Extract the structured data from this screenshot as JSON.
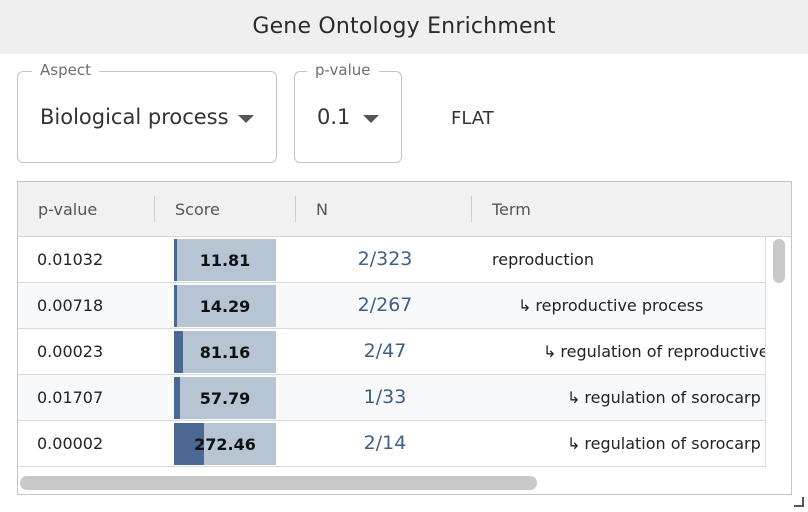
{
  "title": "Gene Ontology Enrichment",
  "controls": {
    "aspect": {
      "label": "Aspect",
      "value": "Biological process"
    },
    "pvalue": {
      "label": "p-value",
      "value": "0.1"
    },
    "flat_label": "FLAT"
  },
  "table": {
    "headers": {
      "pvalue": "p-value",
      "score": "Score",
      "n": "N",
      "term": "Term"
    },
    "rows": [
      {
        "pvalue": "0.01032",
        "score": "11.81",
        "score_fraction": 0.02,
        "n": "2/323",
        "term": "reproduction",
        "depth": 0
      },
      {
        "pvalue": "0.00718",
        "score": "14.29",
        "score_fraction": 0.02,
        "n": "2/267",
        "term": "reproductive process",
        "depth": 1
      },
      {
        "pvalue": "0.00023",
        "score": "81.16",
        "score_fraction": 0.09,
        "n": "2/47",
        "term": "regulation of reproductive process",
        "depth": 2
      },
      {
        "pvalue": "0.01707",
        "score": "57.79",
        "score_fraction": 0.06,
        "n": "1/33",
        "term": "regulation of sorocarp stalk cell differentiation",
        "depth": 3
      },
      {
        "pvalue": "0.00002",
        "score": "272.46",
        "score_fraction": 0.29,
        "n": "2/14",
        "term": "regulation of sorocarp spore cell differentiation",
        "depth": 3
      }
    ]
  },
  "icons": {
    "dropdown": "chevron-down-icon",
    "child_marker": "return-arrow-icon",
    "resize": "resize-handle-icon"
  },
  "colors": {
    "score_bar": "#b7c4d3",
    "score_fill": "#4a6891",
    "n_text": "#3e5f86"
  }
}
